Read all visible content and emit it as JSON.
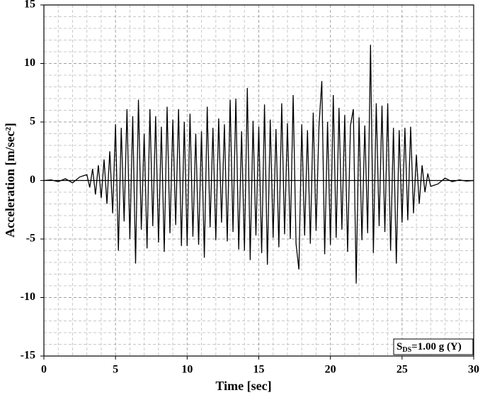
{
  "chart_data": {
    "type": "line",
    "xlabel": "Time [sec]",
    "ylabel": "Acceleration [m/sec²]",
    "annotation": {
      "prefix": "S",
      "subscript": "DS",
      "text": "=1.00 g (Y)"
    },
    "color": "#000000",
    "grid": true,
    "xlim": [
      0,
      30
    ],
    "ylim": [
      -15,
      15
    ],
    "xticks": [
      0,
      5,
      10,
      15,
      20,
      25,
      30
    ],
    "yticks": [
      -15,
      -10,
      -5,
      0,
      5,
      10,
      15
    ],
    "x": [
      0,
      0.5,
      1,
      1.5,
      2,
      2.5,
      3,
      3.2,
      3.4,
      3.6,
      3.8,
      4,
      4.2,
      4.4,
      4.6,
      4.8,
      5,
      5.2,
      5.4,
      5.6,
      5.8,
      6,
      6.2,
      6.4,
      6.6,
      6.8,
      7,
      7.2,
      7.4,
      7.6,
      7.8,
      8,
      8.2,
      8.4,
      8.6,
      8.8,
      9,
      9.2,
      9.4,
      9.6,
      9.8,
      10,
      10.2,
      10.4,
      10.6,
      10.8,
      11,
      11.2,
      11.4,
      11.6,
      11.8,
      12,
      12.2,
      12.4,
      12.6,
      12.8,
      13,
      13.2,
      13.4,
      13.6,
      13.8,
      14,
      14.2,
      14.4,
      14.6,
      14.8,
      15,
      15.2,
      15.4,
      15.6,
      15.8,
      16,
      16.2,
      16.4,
      16.6,
      16.8,
      17,
      17.2,
      17.4,
      17.6,
      17.8,
      18,
      18.2,
      18.4,
      18.6,
      18.8,
      19,
      19.2,
      19.4,
      19.6,
      19.8,
      20,
      20.2,
      20.4,
      20.6,
      20.8,
      21,
      21.2,
      21.4,
      21.6,
      21.8,
      22,
      22.2,
      22.4,
      22.6,
      22.8,
      23,
      23.2,
      23.4,
      23.6,
      23.8,
      24,
      24.2,
      24.4,
      24.6,
      24.8,
      25,
      25.2,
      25.4,
      25.6,
      25.8,
      26,
      26.2,
      26.4,
      26.6,
      26.8,
      27,
      27.5,
      28,
      28.5,
      29,
      29.5,
      30
    ],
    "values": [
      0,
      0.05,
      -0.1,
      0.15,
      -0.2,
      0.3,
      0.5,
      -0.6,
      1.0,
      -1.2,
      1.3,
      -1.5,
      1.8,
      -2.0,
      2.5,
      -2.8,
      4.8,
      -6.0,
      4.5,
      -3.5,
      6.1,
      -5.0,
      5.5,
      -7.1,
      6.9,
      -4.2,
      4.0,
      -5.8,
      6.1,
      -3.9,
      5.5,
      -5.3,
      4.6,
      -6.1,
      6.3,
      -4.5,
      5.2,
      -3.8,
      6.1,
      -5.6,
      5.0,
      -5.6,
      5.7,
      -4.8,
      4.0,
      -5.5,
      4.2,
      -6.6,
      6.3,
      -4.0,
      4.5,
      -5.1,
      5.3,
      -3.6,
      4.8,
      -5.2,
      6.9,
      -4.4,
      7.0,
      -5.9,
      4.2,
      -6.0,
      7.9,
      -6.8,
      5.1,
      -4.7,
      4.6,
      -6.2,
      6.5,
      -7.2,
      5.2,
      -4.9,
      4.4,
      -5.7,
      6.6,
      -4.6,
      4.9,
      -5.0,
      7.3,
      -5.4,
      -7.6,
      4.8,
      -4.7,
      4.3,
      -5.4,
      5.8,
      -4.3,
      4.6,
      8.5,
      -6.3,
      5.0,
      -5.5,
      7.3,
      -4.9,
      6.2,
      -4.2,
      5.6,
      -6.1,
      4.7,
      6.1,
      -8.8,
      5.4,
      -5.1,
      4.7,
      -4.5,
      11.6,
      -6.2,
      6.6,
      -3.9,
      6.4,
      -4.4,
      6.6,
      -6.0,
      4.5,
      -7.1,
      4.3,
      -3.6,
      4.5,
      -3.4,
      4.6,
      -2.8,
      2.2,
      -2.0,
      1.3,
      -1.0,
      0.6,
      -0.5,
      -0.3,
      0.2,
      -0.1,
      0.05,
      -0.05,
      0
    ]
  }
}
